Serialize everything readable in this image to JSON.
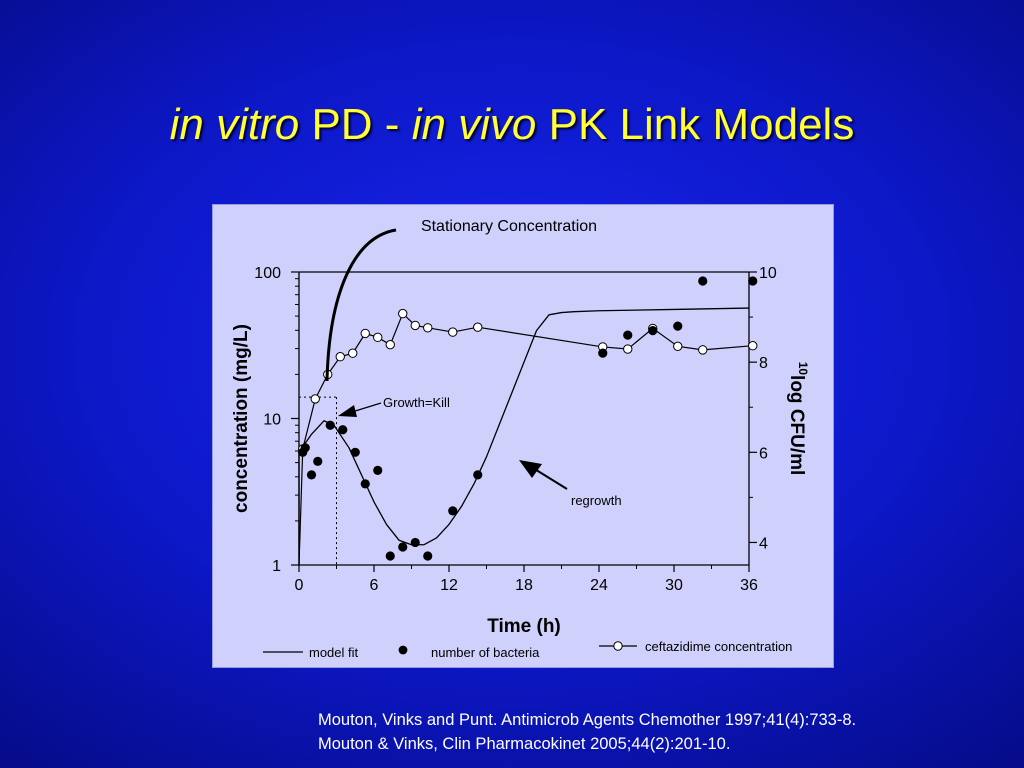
{
  "slide": {
    "title_part1": "in vitro",
    "title_part2": " PD - ",
    "title_part3": "in vivo",
    "title_part4": " PK Link Models",
    "references": [
      "Mouton, Vinks and Punt. Antimicrob Agents Chemother 1997;41(4):733-8.",
      "Mouton & Vinks, Clin Pharmacokinet 2005;44(2):201-10."
    ]
  },
  "chart_data": {
    "type": "scatter",
    "xlabel": "Time (h)",
    "ylabel_left": "concentration (mg/L)",
    "ylabel_right_superscript": "10",
    "ylabel_right": "log CFU/ml",
    "x_ticks": [
      0,
      6,
      12,
      18,
      24,
      30,
      36
    ],
    "y_left_ticks": [
      "1",
      "10",
      "100"
    ],
    "y_right_ticks": [
      "4",
      "6",
      "8",
      "10"
    ],
    "xlim": [
      0,
      36
    ],
    "ylim_left": [
      1,
      100
    ],
    "ylim_right": [
      3.5,
      10
    ],
    "y_left_scale": "log",
    "annotations": {
      "stationary": "Stationary Concentration",
      "growth_kill": "Growth=Kill",
      "regrowth": "regrowth"
    },
    "legend": {
      "model_fit": "model fit",
      "bacteria": "number of bacteria",
      "ceftazidime": "ceftazidime concentration"
    },
    "stationary_level": 100,
    "growth_kill_time": 3,
    "growth_kill_conc": 14,
    "ceftazidime": {
      "x": [
        0.3,
        1.3,
        2.3,
        3.3,
        4.3,
        5.3,
        6.3,
        7.3,
        8.3,
        9.3,
        10.3,
        12.3,
        14.3,
        24.3,
        26.3,
        28.3,
        30.3,
        32.3,
        36.3
      ],
      "y": [
        6.2,
        13.6,
        20.0,
        26.4,
        27.9,
        38.1,
        35.8,
        31.9,
        52.0,
        43.2,
        41.6,
        38.9,
        42.0,
        30.8,
        29.8,
        41.2,
        31.1,
        29.4,
        31.4
      ]
    },
    "bacteria": {
      "x": [
        0.3,
        0.5,
        1.0,
        1.5,
        2.5,
        3.5,
        4.5,
        5.3,
        6.3,
        7.3,
        8.3,
        9.3,
        10.3,
        12.3,
        14.3,
        24.3,
        26.3,
        28.3,
        30.3,
        32.3,
        36.3
      ],
      "y": [
        6.0,
        6.1,
        5.5,
        5.8,
        6.6,
        6.5,
        6.0,
        5.3,
        5.6,
        3.7,
        3.9,
        4.0,
        3.7,
        4.7,
        5.5,
        8.2,
        8.6,
        8.7,
        8.8,
        9.8,
        9.8
      ]
    },
    "model_fit_bacteria": {
      "x": [
        0,
        0.5,
        1,
        2,
        2.8,
        4,
        5,
        6,
        7,
        8,
        9,
        10,
        11,
        12,
        13,
        14,
        15,
        16,
        17,
        18,
        19,
        20,
        21,
        22,
        24,
        30,
        36
      ],
      "y": [
        6.0,
        6.2,
        6.4,
        6.7,
        6.6,
        6.1,
        5.5,
        4.9,
        4.4,
        4.05,
        3.95,
        3.95,
        4.1,
        4.4,
        4.8,
        5.3,
        5.9,
        6.6,
        7.3,
        8.0,
        8.7,
        9.05,
        9.1,
        9.12,
        9.14,
        9.17,
        9.2
      ]
    }
  }
}
